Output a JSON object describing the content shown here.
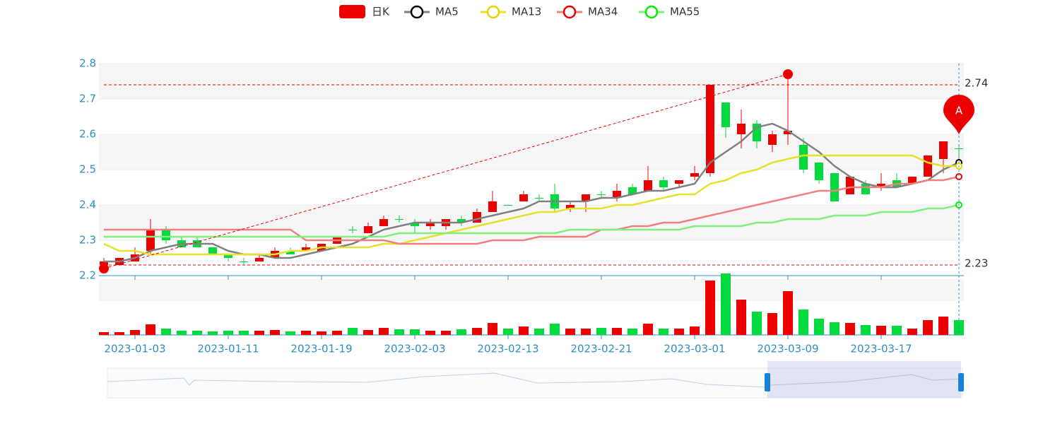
{
  "chart_data": {
    "type": "candlestick",
    "categories": [
      null,
      null,
      "2023-01-03",
      null,
      null,
      null,
      null,
      null,
      "2023-01-11",
      null,
      null,
      null,
      null,
      null,
      "2023-01-19",
      null,
      null,
      null,
      null,
      null,
      "2023-02-03",
      null,
      null,
      null,
      null,
      null,
      "2023-02-13",
      null,
      null,
      null,
      null,
      null,
      "2023-02-21",
      null,
      null,
      null,
      null,
      null,
      "2023-03-01",
      null,
      null,
      null,
      null,
      null,
      "2023-03-09",
      null,
      null,
      null,
      null,
      null,
      "2023-03-17",
      null,
      null,
      null,
      null,
      null
    ],
    "ylim": [
      2.2,
      2.8
    ],
    "yticks": [
      2.2,
      2.3,
      2.4,
      2.5,
      2.6,
      2.7,
      2.8
    ],
    "grid": true,
    "candles": {
      "name": "日K",
      "up_color": "#ec0000",
      "down_color": "#00da3c",
      "open": [
        2.23,
        2.23,
        2.24,
        2.27,
        2.33,
        2.3,
        2.3,
        2.28,
        2.26,
        2.24,
        2.24,
        2.25,
        2.27,
        2.27,
        2.27,
        2.29,
        2.33,
        2.32,
        2.34,
        2.36,
        2.35,
        2.34,
        2.34,
        2.36,
        2.35,
        2.38,
        2.4,
        2.41,
        2.42,
        2.43,
        2.39,
        2.41,
        2.43,
        2.42,
        2.45,
        2.44,
        2.47,
        2.46,
        2.48,
        2.49,
        2.69,
        2.6,
        2.63,
        2.57,
        2.6,
        2.57,
        2.52,
        2.49,
        2.43,
        2.46,
        2.45,
        2.47,
        2.46,
        2.48,
        2.53,
        2.56
      ],
      "close": [
        2.24,
        2.25,
        2.26,
        2.33,
        2.3,
        2.28,
        2.28,
        2.26,
        2.25,
        2.24,
        2.25,
        2.27,
        2.26,
        2.28,
        2.29,
        2.31,
        2.33,
        2.34,
        2.36,
        2.36,
        2.34,
        2.35,
        2.36,
        2.35,
        2.38,
        2.41,
        2.4,
        2.43,
        2.42,
        2.39,
        2.4,
        2.43,
        2.43,
        2.44,
        2.43,
        2.47,
        2.45,
        2.47,
        2.49,
        2.74,
        2.62,
        2.63,
        2.58,
        2.6,
        2.61,
        2.5,
        2.47,
        2.41,
        2.48,
        2.43,
        2.46,
        2.45,
        2.48,
        2.54,
        2.58,
        2.56
      ],
      "low": [
        2.22,
        2.23,
        2.24,
        2.26,
        2.29,
        2.28,
        2.28,
        2.26,
        2.24,
        2.23,
        2.24,
        2.25,
        2.26,
        2.27,
        2.27,
        2.29,
        2.32,
        2.32,
        2.34,
        2.35,
        2.32,
        2.33,
        2.33,
        2.34,
        2.35,
        2.38,
        2.4,
        2.41,
        2.41,
        2.38,
        2.38,
        2.38,
        2.42,
        2.41,
        2.43,
        2.44,
        2.44,
        2.45,
        2.47,
        2.48,
        2.59,
        2.56,
        2.56,
        2.55,
        2.57,
        2.49,
        2.46,
        2.41,
        2.43,
        2.43,
        2.44,
        2.45,
        2.46,
        2.48,
        2.49,
        2.53
      ],
      "high": [
        2.25,
        2.25,
        2.28,
        2.36,
        2.34,
        2.31,
        2.31,
        2.28,
        2.26,
        2.25,
        2.26,
        2.28,
        2.28,
        2.29,
        2.29,
        2.31,
        2.34,
        2.35,
        2.37,
        2.37,
        2.36,
        2.36,
        2.36,
        2.37,
        2.39,
        2.44,
        2.4,
        2.44,
        2.43,
        2.46,
        2.41,
        2.43,
        2.44,
        2.46,
        2.46,
        2.51,
        2.48,
        2.47,
        2.51,
        2.74,
        2.69,
        2.67,
        2.64,
        2.61,
        2.77,
        2.59,
        2.52,
        2.49,
        2.48,
        2.47,
        2.49,
        2.49,
        2.48,
        2.54,
        2.58,
        2.57
      ],
      "volume": [
        4,
        4,
        7,
        15,
        9,
        6,
        6,
        5,
        6,
        6,
        6,
        7,
        5,
        6,
        5,
        6,
        10,
        7,
        10,
        8,
        8,
        6,
        6,
        8,
        10,
        17,
        9,
        12,
        9,
        16,
        9,
        9,
        10,
        10,
        9,
        16,
        9,
        9,
        12,
        77,
        87,
        50,
        33,
        31,
        62,
        36,
        23,
        18,
        17,
        14,
        13,
        13,
        9,
        21,
        26,
        21
      ]
    },
    "series": [
      {
        "name": "MA5",
        "color": "#808080",
        "marker_color": "#000000",
        "values": [
          2.24,
          2.24,
          2.25,
          2.27,
          2.28,
          2.29,
          2.29,
          2.29,
          2.27,
          2.26,
          2.26,
          2.25,
          2.25,
          2.26,
          2.27,
          2.28,
          2.29,
          2.31,
          2.33,
          2.34,
          2.35,
          2.35,
          2.35,
          2.35,
          2.36,
          2.37,
          2.38,
          2.39,
          2.41,
          2.41,
          2.41,
          2.41,
          2.42,
          2.42,
          2.43,
          2.44,
          2.44,
          2.45,
          2.46,
          2.52,
          2.55,
          2.58,
          2.62,
          2.63,
          2.61,
          2.58,
          2.55,
          2.51,
          2.48,
          2.46,
          2.45,
          2.45,
          2.46,
          2.47,
          2.5,
          2.52
        ]
      },
      {
        "name": "MA13",
        "color": "#e6e12a",
        "marker_color": "#e6d400",
        "values": [
          2.29,
          2.27,
          2.27,
          2.26,
          2.26,
          2.26,
          2.26,
          2.26,
          2.26,
          2.26,
          2.26,
          2.26,
          2.27,
          2.27,
          2.28,
          2.28,
          2.28,
          2.28,
          2.29,
          2.29,
          2.3,
          2.31,
          2.32,
          2.33,
          2.34,
          2.35,
          2.36,
          2.37,
          2.38,
          2.38,
          2.39,
          2.39,
          2.39,
          2.4,
          2.4,
          2.41,
          2.42,
          2.43,
          2.43,
          2.46,
          2.47,
          2.49,
          2.5,
          2.52,
          2.53,
          2.54,
          2.54,
          2.54,
          2.54,
          2.54,
          2.54,
          2.54,
          2.54,
          2.52,
          2.51,
          2.51
        ]
      },
      {
        "name": "MA34",
        "color": "#f08080",
        "marker_color": "#ec0000",
        "values": [
          2.33,
          2.33,
          2.33,
          2.33,
          2.33,
          2.33,
          2.33,
          2.33,
          2.33,
          2.33,
          2.33,
          2.33,
          2.33,
          2.3,
          2.3,
          2.3,
          2.3,
          2.3,
          2.3,
          2.29,
          2.29,
          2.29,
          2.29,
          2.29,
          2.29,
          2.3,
          2.3,
          2.3,
          2.31,
          2.31,
          2.31,
          2.31,
          2.33,
          2.33,
          2.34,
          2.34,
          2.35,
          2.35,
          2.36,
          2.37,
          2.38,
          2.39,
          2.4,
          2.41,
          2.42,
          2.43,
          2.44,
          2.44,
          2.45,
          2.45,
          2.45,
          2.46,
          2.46,
          2.47,
          2.47,
          2.48
        ]
      },
      {
        "name": "MA55",
        "color": "#7ef07e",
        "marker_color": "#00ee00",
        "values": [
          2.31,
          2.31,
          2.31,
          2.31,
          2.31,
          2.31,
          2.31,
          2.31,
          2.31,
          2.31,
          2.31,
          2.31,
          2.31,
          2.31,
          2.31,
          2.31,
          2.31,
          2.31,
          2.31,
          2.32,
          2.32,
          2.32,
          2.32,
          2.32,
          2.32,
          2.32,
          2.32,
          2.32,
          2.32,
          2.32,
          2.33,
          2.33,
          2.33,
          2.33,
          2.33,
          2.33,
          2.33,
          2.33,
          2.34,
          2.34,
          2.34,
          2.34,
          2.35,
          2.35,
          2.36,
          2.36,
          2.36,
          2.37,
          2.37,
          2.37,
          2.38,
          2.38,
          2.38,
          2.39,
          2.39,
          2.4
        ]
      }
    ],
    "mark_lines": [
      2.74,
      2.23
    ],
    "trend_line": [
      {
        "index": 0,
        "value": 2.22
      },
      {
        "index": 44,
        "value": 2.77
      }
    ],
    "pin": {
      "label": "A",
      "index": 55,
      "value": 2.6
    }
  }
}
